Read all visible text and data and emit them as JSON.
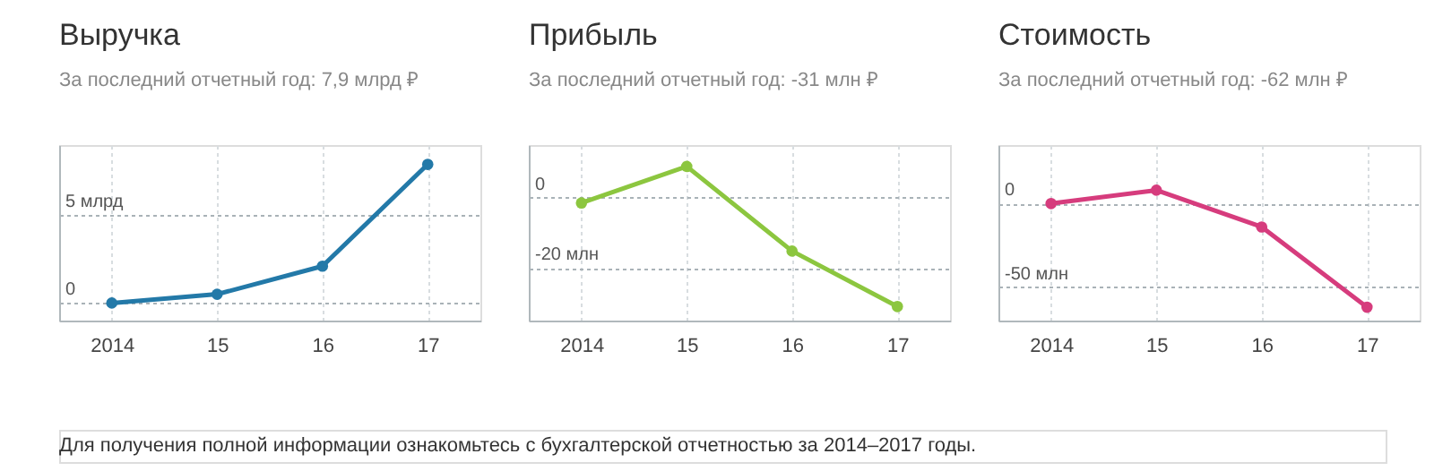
{
  "chart_data": [
    {
      "type": "line",
      "title": "Выручка",
      "subtitle": "За последний отчетный год: 7,9 млрд ₽",
      "categories": [
        "2014",
        "15",
        "16",
        "17"
      ],
      "values": [
        0,
        0.5,
        2.1,
        7.9
      ],
      "color": "#2379a8",
      "ylim": [
        -1,
        9
      ],
      "yticks": [
        {
          "value": 0,
          "label": "0"
        },
        {
          "value": 5,
          "label": "5 млрд"
        }
      ],
      "grid": true,
      "marker": "circle",
      "annotations": [
        "Для получения полной информации ознакомьтесь с бухгалтерской отчетностью за 2014–2017 годы."
      ]
    },
    {
      "type": "line",
      "title": "Прибыль",
      "subtitle": "За последний отчетный год: -31 млн ₽",
      "categories": [
        "2014",
        "15",
        "16",
        "17"
      ],
      "values": [
        -1.5,
        8.9,
        -15.2,
        -31
      ],
      "color": "#8cc63f",
      "ylim": [
        -35,
        15
      ],
      "yticks": [
        {
          "value": 0,
          "label": "0"
        },
        {
          "value": -20,
          "label": "-20 млн"
        }
      ],
      "grid": true,
      "marker": "circle"
    },
    {
      "type": "line",
      "title": "Стоимость",
      "subtitle": "За последний отчетный год: -62 млн ₽",
      "categories": [
        "2014",
        "15",
        "16",
        "17"
      ],
      "values": [
        0,
        8,
        -14,
        -62
      ],
      "color": "#d63c7d",
      "ylim": [
        -70,
        35
      ],
      "yticks": [
        {
          "value": 0,
          "label": "0"
        },
        {
          "value": -50,
          "label": "-50 млн"
        }
      ],
      "grid": true,
      "marker": "circle"
    }
  ]
}
